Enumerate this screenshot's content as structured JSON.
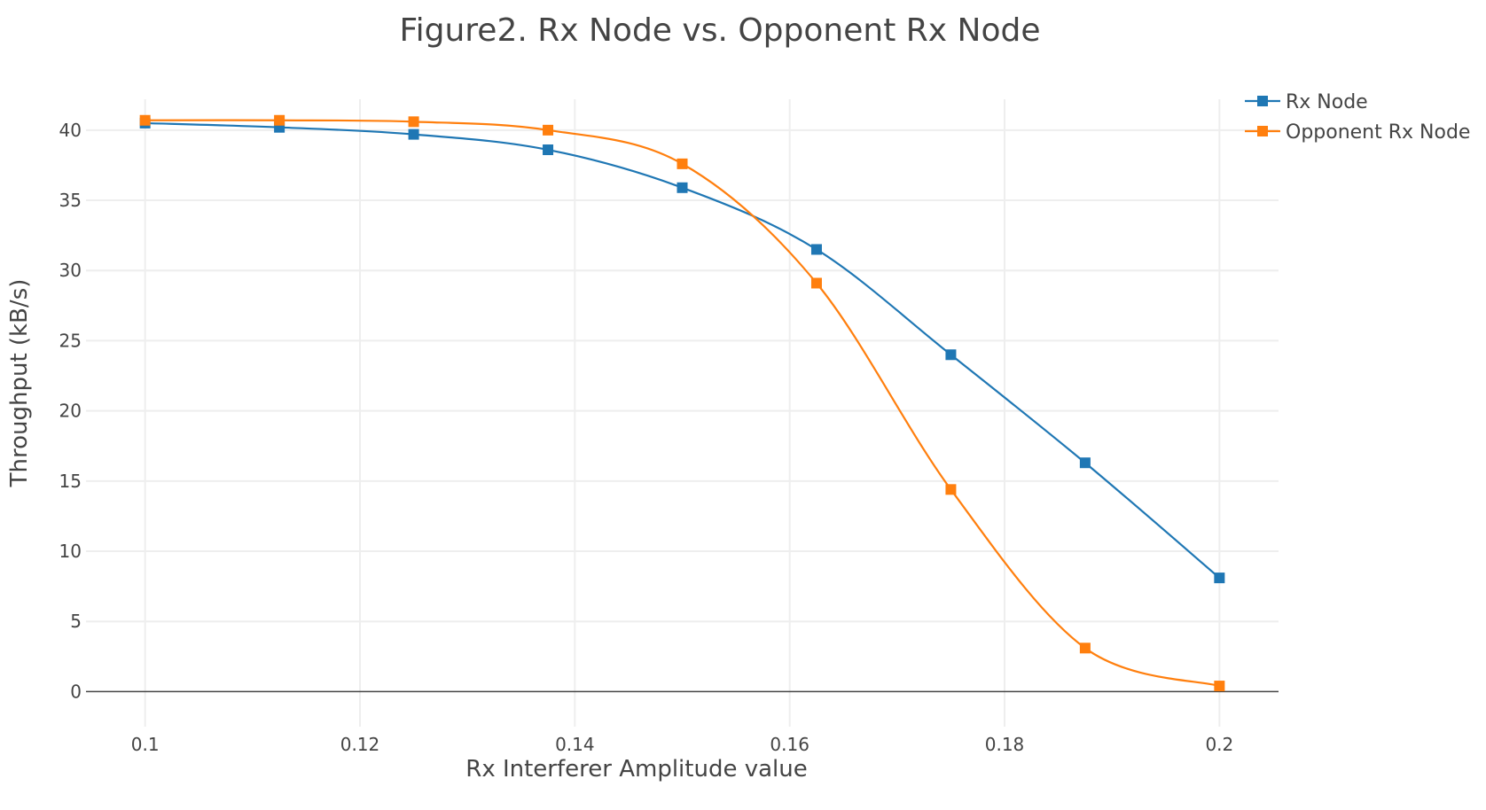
{
  "chart_data": {
    "type": "line",
    "title": "Figure2. Rx Node vs. Opponent Rx Node",
    "xlabel": "Rx Interferer Amplitude value",
    "ylabel": "Throughput (kB/s)",
    "xlim": [
      0.0945,
      0.2055
    ],
    "ylim": [
      -2.5,
      42.2
    ],
    "x_ticks": [
      0.1,
      0.12,
      0.14,
      0.16,
      0.18,
      0.2
    ],
    "x_tick_labels": [
      "0.1",
      "0.12",
      "0.14",
      "0.16",
      "0.18",
      "0.2"
    ],
    "y_ticks": [
      0,
      5,
      10,
      15,
      20,
      25,
      30,
      35,
      40
    ],
    "y_tick_labels": [
      "0",
      "5",
      "10",
      "15",
      "20",
      "25",
      "30",
      "35",
      "40"
    ],
    "grid": true,
    "legend_position": "top-right",
    "x": [
      0.1,
      0.1125,
      0.125,
      0.1375,
      0.15,
      0.1625,
      0.175,
      0.1875,
      0.2
    ],
    "series": [
      {
        "name": "Rx Node",
        "color": "#1f77b4",
        "values": [
          40.5,
          40.2,
          39.7,
          38.6,
          35.9,
          31.5,
          24.0,
          16.3,
          8.1
        ]
      },
      {
        "name": "Opponent Rx Node",
        "color": "#ff7f0e",
        "values": [
          40.7,
          40.7,
          40.6,
          40.0,
          37.6,
          29.1,
          14.4,
          3.1,
          0.4
        ]
      }
    ]
  }
}
